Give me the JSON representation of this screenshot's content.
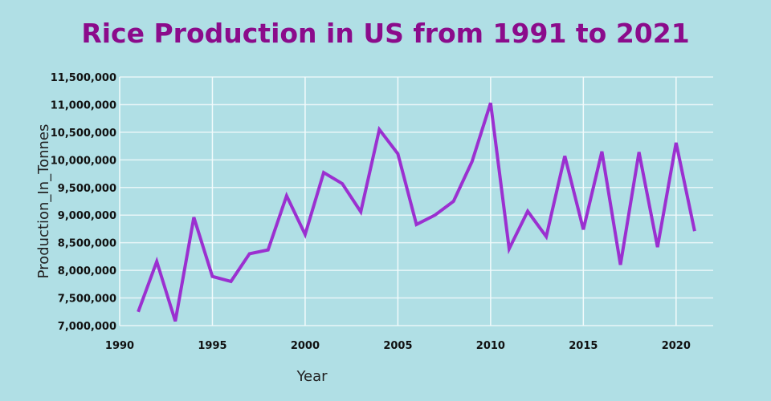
{
  "chart_data": {
    "type": "line",
    "title": "Rice Production in US from 1991 to 2021",
    "xlabel": "Year",
    "ylabel": "Production_In_Tonnes",
    "xlim": [
      1990,
      2022
    ],
    "ylim": [
      7000000,
      11500000
    ],
    "grid": true,
    "line_color": "#9b30d0",
    "x_ticks": [
      1990,
      1995,
      2000,
      2005,
      2010,
      2015,
      2020
    ],
    "y_ticks": [
      7000000,
      7500000,
      8000000,
      8500000,
      9000000,
      9500000,
      10000000,
      10500000,
      11000000,
      11500000
    ],
    "y_tick_labels": [
      "7,000,000",
      "7,500,000",
      "8,000,000",
      "8,500,000",
      "9,000,000",
      "9,500,000",
      "10,000,000",
      "10,500,000",
      "11,000,000",
      "11,500,000"
    ],
    "x": [
      1991,
      1992,
      1993,
      1994,
      1995,
      1996,
      1997,
      1998,
      1999,
      2000,
      2001,
      2002,
      2003,
      2004,
      2005,
      2006,
      2007,
      2008,
      2009,
      2010,
      2011,
      2012,
      2013,
      2014,
      2015,
      2016,
      2017,
      2018,
      2019,
      2020,
      2021
    ],
    "values": [
      7250000,
      8160000,
      7080000,
      8960000,
      7890000,
      7800000,
      8300000,
      8370000,
      9350000,
      8650000,
      9770000,
      9570000,
      9060000,
      10550000,
      10110000,
      8830000,
      9000000,
      9250000,
      9970000,
      11030000,
      8390000,
      9070000,
      8610000,
      10070000,
      8740000,
      10150000,
      8100000,
      10140000,
      8420000,
      10310000,
      8710000
    ]
  }
}
